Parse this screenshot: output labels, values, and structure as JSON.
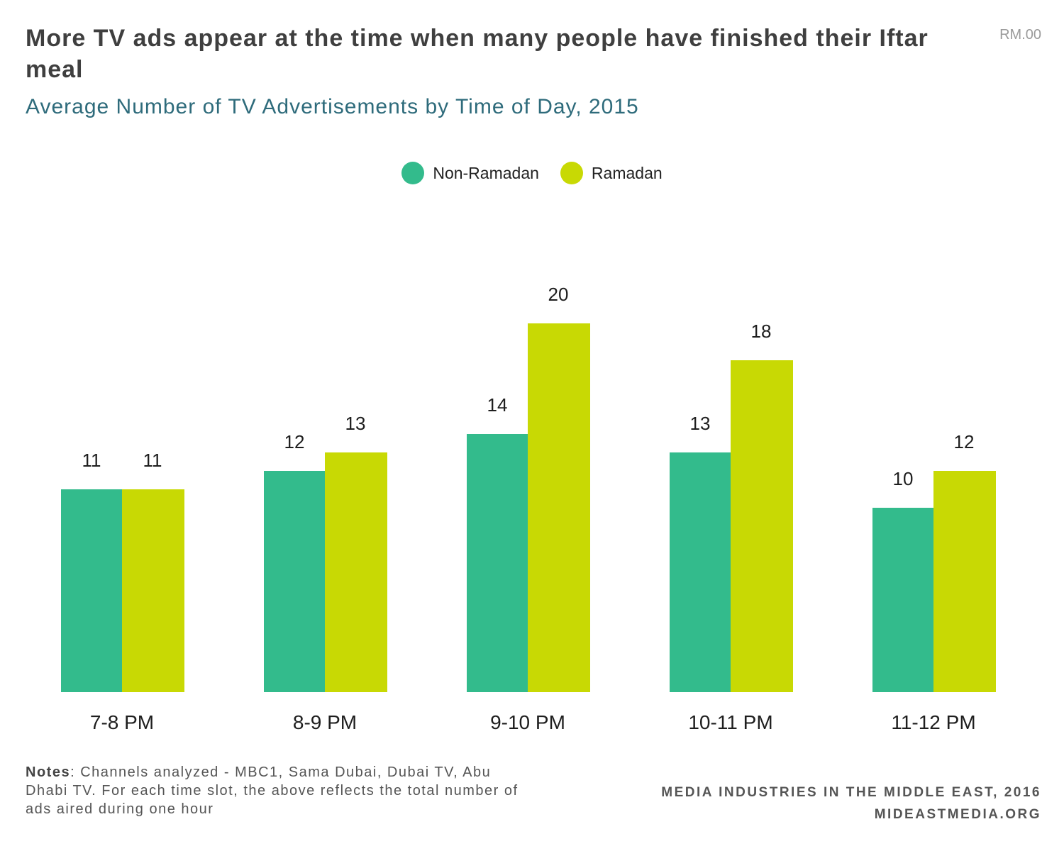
{
  "title": "More TV ads appear at the time when many people have finished their Iftar meal",
  "code": "RM.00",
  "subtitle": "Average Number of TV Advertisements by Time of Day, 2015",
  "notes": {
    "label": "Notes",
    "text": ": Channels analyzed - MBC1, Sama Dubai, Dubai TV, Abu Dhabi TV. For each time slot, the above reflects the total number of ads aired during one hour"
  },
  "source": {
    "line1": "MEDIA INDUSTRIES IN THE MIDDLE EAST, 2016",
    "line2": "MIDEASTMEDIA.ORG"
  },
  "colors": {
    "non_ramadan": "#33bb8c",
    "ramadan": "#c8d904"
  },
  "chart_data": {
    "type": "bar",
    "title": "Average Number of TV Advertisements by Time of Day, 2015",
    "categories": [
      "7-8 PM",
      "8-9 PM",
      "9-10 PM",
      "10-11 PM",
      "11-12 PM"
    ],
    "series": [
      {
        "name": "Non-Ramadan",
        "values": [
          11,
          12,
          14,
          13,
          10
        ]
      },
      {
        "name": "Ramadan",
        "values": [
          11,
          13,
          20,
          18,
          12
        ]
      }
    ],
    "ylim": [
      0,
      20
    ],
    "grid": false,
    "legend": "top-center"
  }
}
